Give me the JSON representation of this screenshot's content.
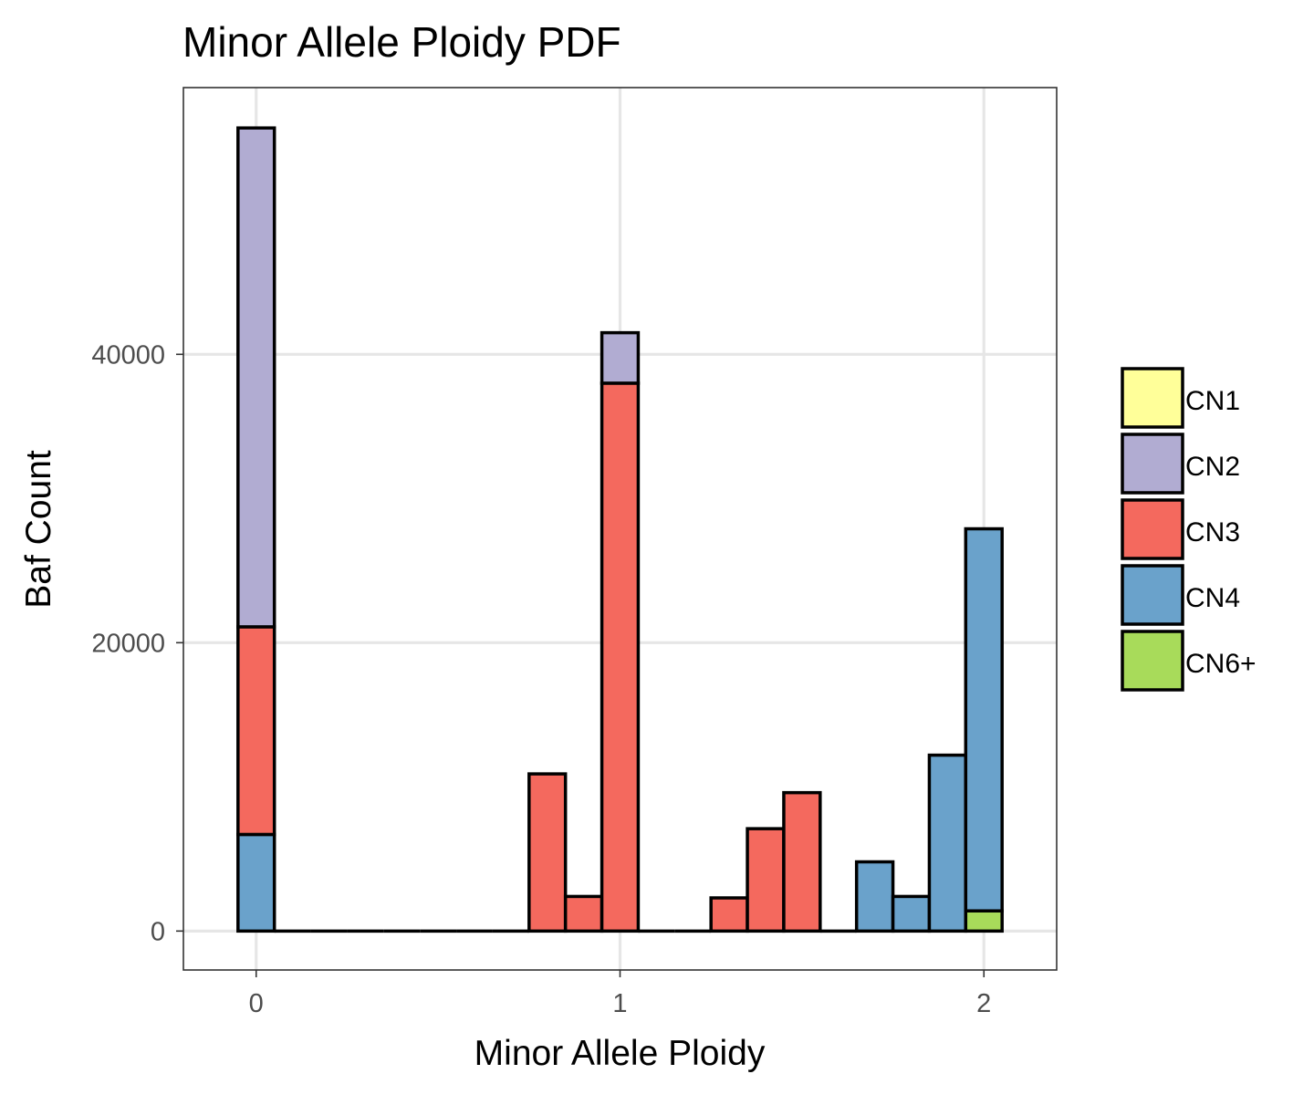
{
  "chart_data": {
    "type": "bar",
    "stacked": true,
    "title": "Minor Allele Ploidy PDF",
    "xlabel": "Minor Allele Ploidy",
    "ylabel": "Baf Count",
    "xlim": [
      -0.2,
      2.2
    ],
    "ylim": [
      -2700,
      58500
    ],
    "x_ticks": [
      0,
      1,
      2
    ],
    "y_ticks": [
      0,
      20000,
      40000
    ],
    "x_tick_labels": [
      "0",
      "1",
      "2"
    ],
    "y_tick_labels": [
      "0",
      "20000",
      "40000"
    ],
    "grid": true,
    "bin_width": 0.1,
    "legend": {
      "position": "right",
      "entries": [
        {
          "key": "CN1",
          "label": "CN1",
          "color": "#FFFF99"
        },
        {
          "key": "CN2",
          "label": "CN2",
          "color": "#B1ACD2"
        },
        {
          "key": "CN3",
          "label": "CN3",
          "color": "#F4695E"
        },
        {
          "key": "CN4",
          "label": "CN4",
          "color": "#6AA2CB"
        },
        {
          "key": "CN6+",
          "label": "CN6+",
          "color": "#A8DB5A"
        }
      ]
    },
    "bins": [
      {
        "x": 0.0,
        "CN4": 6700,
        "CN3": 14400,
        "CN2": 34600
      },
      {
        "x": 0.1
      },
      {
        "x": 0.2
      },
      {
        "x": 0.3
      },
      {
        "x": 0.4
      },
      {
        "x": 0.5
      },
      {
        "x": 0.6
      },
      {
        "x": 0.7
      },
      {
        "x": 0.8,
        "CN3": 10900
      },
      {
        "x": 0.9,
        "CN3": 2400
      },
      {
        "x": 1.0,
        "CN3": 38000,
        "CN2": 3500
      },
      {
        "x": 1.1
      },
      {
        "x": 1.2
      },
      {
        "x": 1.3,
        "CN3": 2300
      },
      {
        "x": 1.4,
        "CN3": 7100
      },
      {
        "x": 1.5,
        "CN3": 9600
      },
      {
        "x": 1.6
      },
      {
        "x": 1.7,
        "CN4": 4800
      },
      {
        "x": 1.8,
        "CN4": 2400
      },
      {
        "x": 1.9,
        "CN4": 12200
      },
      {
        "x": 2.0,
        "CN6+": 1400,
        "CN4": 26500
      }
    ]
  }
}
